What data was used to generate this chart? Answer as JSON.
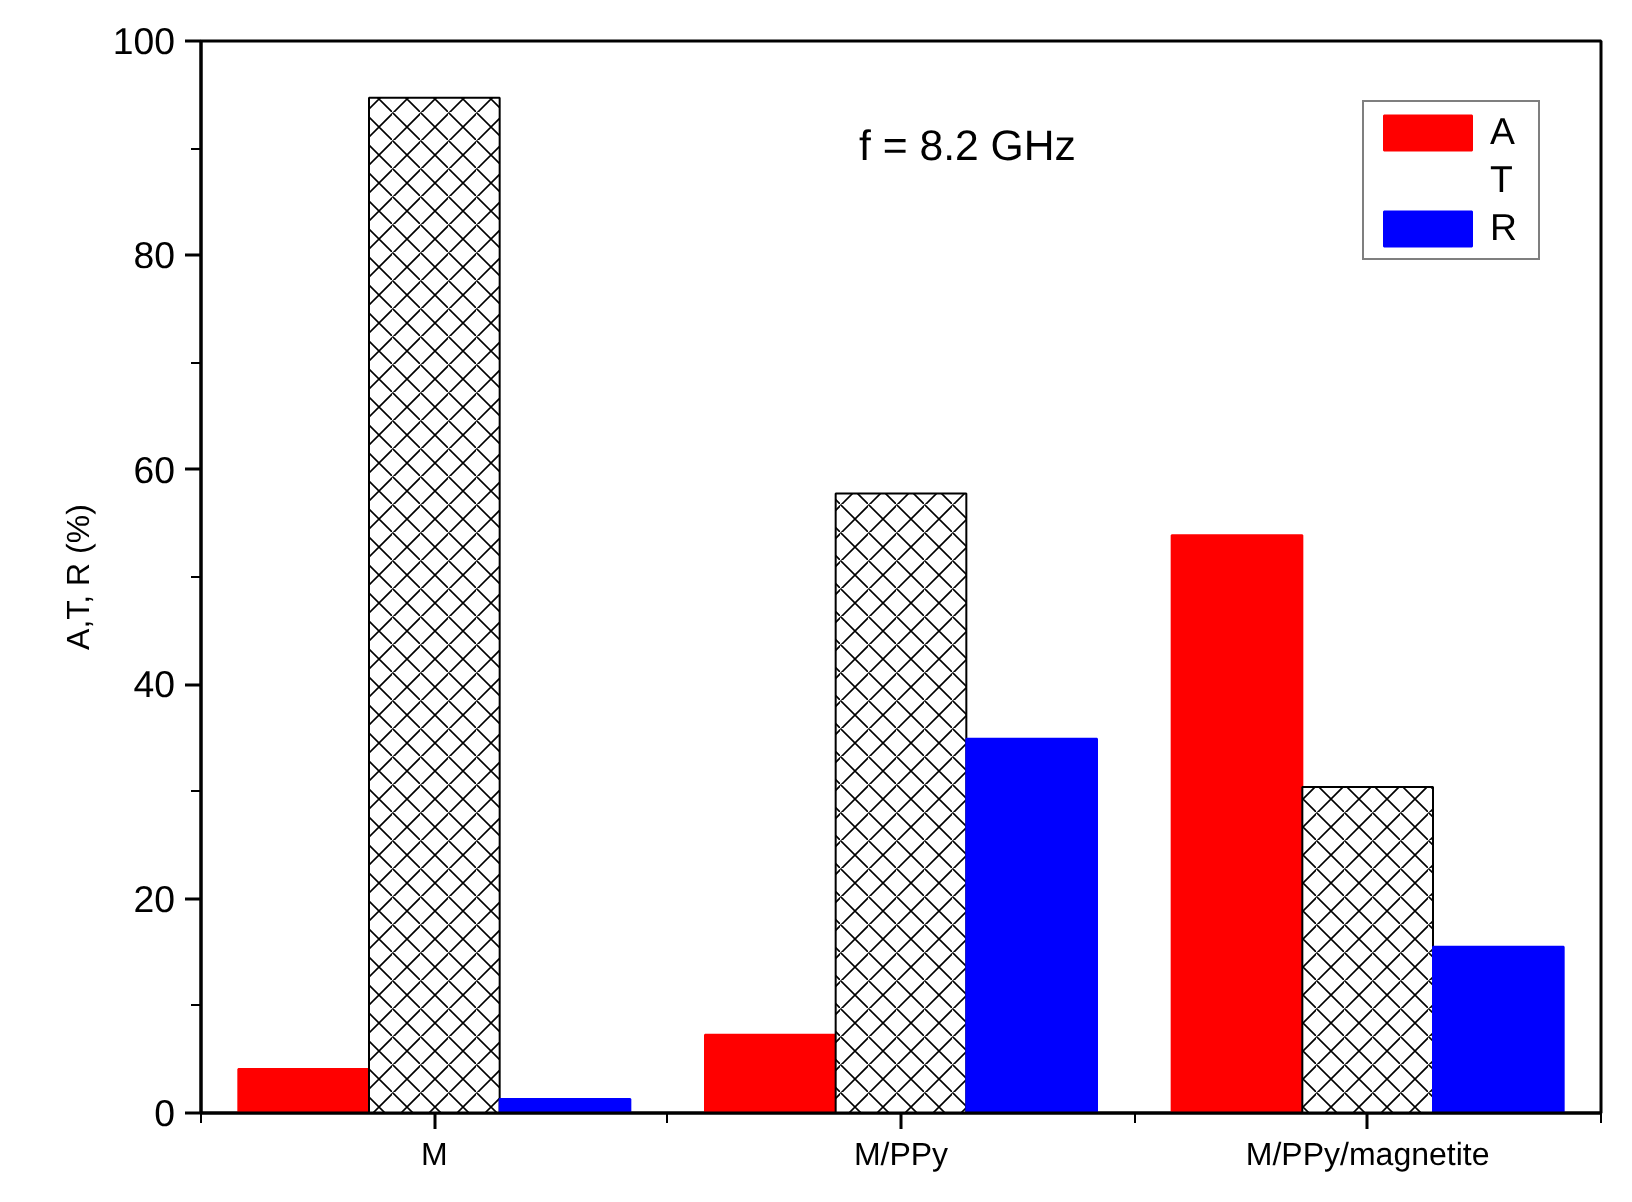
{
  "chart_data": {
    "type": "bar",
    "ylabel": "A,T, R (%)",
    "categories": [
      "M",
      "M/PPy",
      "M/PPy/magnetite"
    ],
    "series": [
      {
        "name": "A",
        "color": "#ff0000",
        "values": [
          4.1,
          7.3,
          53.9
        ]
      },
      {
        "name": "T",
        "color": "#ffffff",
        "values": [
          94.7,
          57.8,
          30.4
        ]
      },
      {
        "name": "R",
        "color": "#0000ff",
        "values": [
          1.3,
          34.9,
          15.5
        ]
      }
    ],
    "ylim": [
      0,
      100
    ],
    "yticks": [
      0,
      20,
      40,
      60,
      80,
      100
    ],
    "annotations": [
      "f = 8.2 GHz"
    ],
    "legend": "top right",
    "grid": false
  }
}
